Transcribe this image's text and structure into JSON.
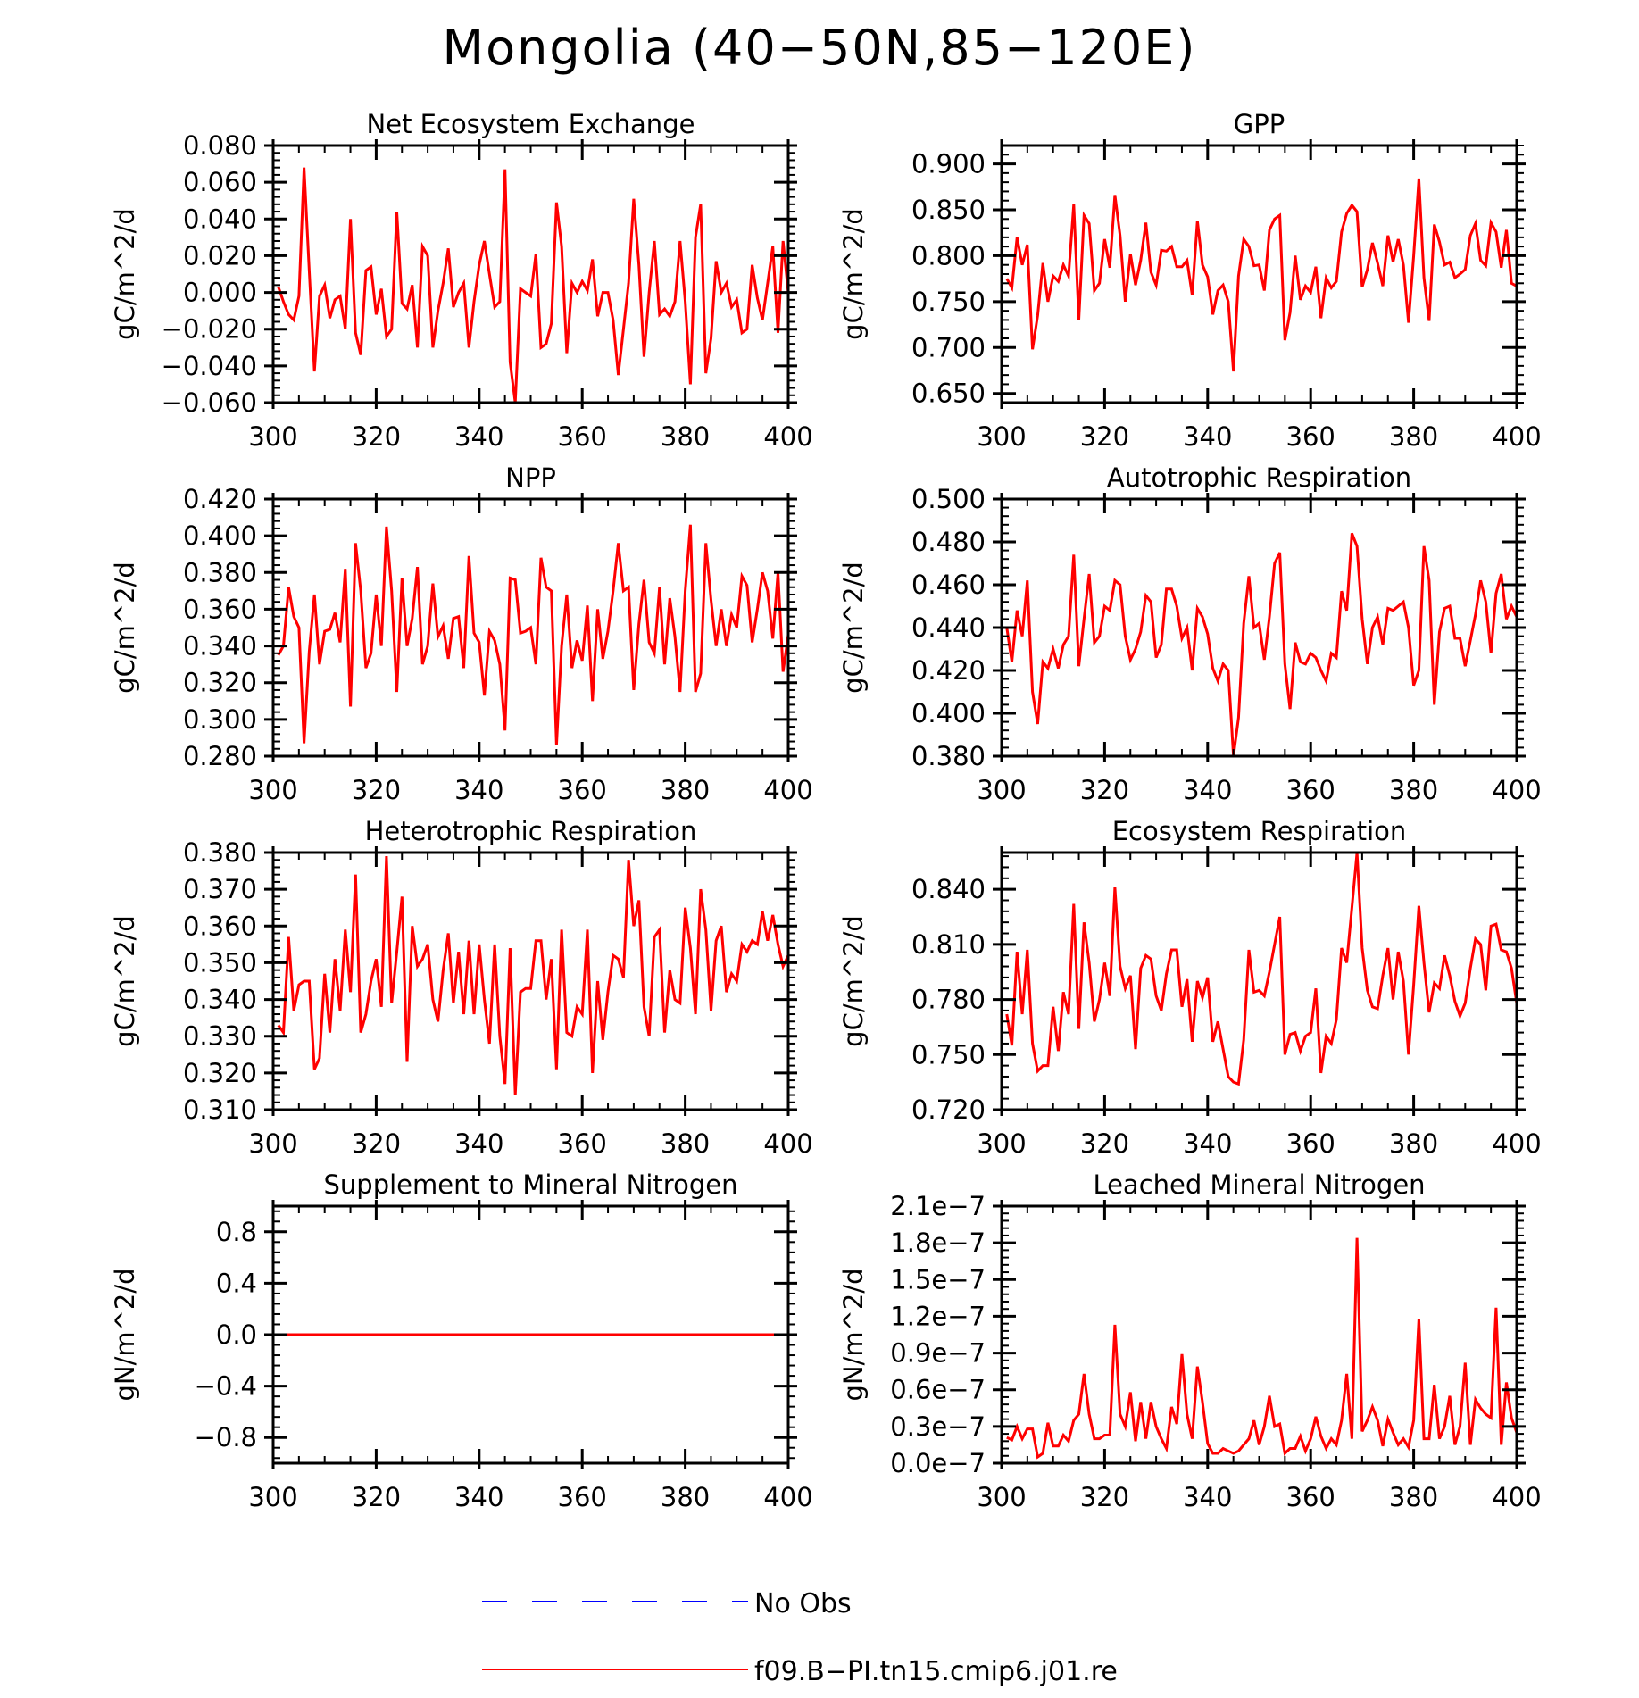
{
  "figure": {
    "title": "Mongolia (40−50N,85−120E)"
  },
  "colors": {
    "model": "#ff0000",
    "obs": "#0000ff",
    "axis": "#000000"
  },
  "legend": {
    "placement": "bottom-center",
    "entries": [
      {
        "label": "No Obs",
        "style": "dashed",
        "color": "#0000ff"
      },
      {
        "label": "f09.B−PI.tn15.cmip6.j01.re",
        "style": "solid",
        "color": "#ff0000"
      }
    ]
  },
  "chart_data": [
    {
      "type": "line",
      "title": "Net Ecosystem Exchange",
      "xlabel": "",
      "ylabel": "gC/m^2/d",
      "xlim": [
        300,
        400
      ],
      "ylim": [
        -0.06,
        0.08
      ],
      "xticks": [
        300,
        320,
        340,
        360,
        380,
        400
      ],
      "yticks": [
        -0.06,
        -0.04,
        -0.02,
        0.0,
        0.02,
        0.04,
        0.06,
        0.08
      ],
      "ytick_labels": [
        "−0.060",
        "−0.040",
        "−0.020",
        "0.000",
        "0.020",
        "0.040",
        "0.060",
        "0.080"
      ],
      "series": [
        {
          "name": "f09.B−PI.tn15.cmip6.j01.re",
          "x0": 301,
          "dx": 1,
          "values": [
            0.003,
            -0.005,
            -0.012,
            -0.015,
            -0.002,
            0.068,
            0.012,
            -0.043,
            -0.002,
            0.004,
            -0.014,
            -0.004,
            -0.002,
            -0.02,
            0.04,
            -0.022,
            -0.034,
            0.012,
            0.014,
            -0.012,
            0.002,
            -0.024,
            -0.02,
            0.044,
            -0.006,
            -0.009,
            0.004,
            -0.03,
            0.025,
            0.02,
            -0.03,
            -0.01,
            0.005,
            0.024,
            -0.008,
            0.0,
            0.005,
            -0.03,
            -0.005,
            0.015,
            0.028,
            0.01,
            -0.008,
            -0.005,
            0.067,
            -0.038,
            -0.06,
            0.002,
            0.0,
            -0.002,
            0.021,
            -0.03,
            -0.028,
            -0.017,
            0.049,
            0.025,
            -0.033,
            0.005,
            0.0,
            0.006,
            0.001,
            0.018,
            -0.013,
            0.0,
            0.0,
            -0.015,
            -0.045,
            -0.02,
            0.005,
            0.051,
            0.015,
            -0.035,
            0.0,
            0.028,
            -0.012,
            -0.009,
            -0.013,
            -0.005,
            0.028,
            -0.005,
            -0.05,
            0.03,
            0.048,
            -0.044,
            -0.025,
            0.017,
            0.0,
            0.005,
            -0.008,
            -0.004,
            -0.022,
            -0.02,
            0.015,
            -0.003,
            -0.015,
            0.005,
            0.025,
            -0.022,
            0.028,
            0.0
          ]
        }
      ]
    },
    {
      "type": "line",
      "title": "GPP",
      "xlabel": "",
      "ylabel": "gC/m^2/d",
      "xlim": [
        300,
        400
      ],
      "ylim": [
        0.64,
        0.92
      ],
      "xticks": [
        300,
        320,
        340,
        360,
        380,
        400
      ],
      "yticks": [
        0.65,
        0.7,
        0.75,
        0.8,
        0.85,
        0.9
      ],
      "ytick_labels": [
        "0.650",
        "0.700",
        "0.750",
        "0.800",
        "0.850",
        "0.900"
      ],
      "series": [
        {
          "name": "f09.B−PI.tn15.cmip6.j01.re",
          "x0": 301,
          "dx": 1,
          "values": [
            0.775,
            0.765,
            0.82,
            0.79,
            0.812,
            0.698,
            0.735,
            0.792,
            0.75,
            0.778,
            0.772,
            0.79,
            0.778,
            0.856,
            0.73,
            0.844,
            0.835,
            0.762,
            0.77,
            0.818,
            0.787,
            0.866,
            0.822,
            0.75,
            0.802,
            0.768,
            0.795,
            0.836,
            0.782,
            0.768,
            0.806,
            0.805,
            0.81,
            0.788,
            0.788,
            0.795,
            0.757,
            0.838,
            0.79,
            0.777,
            0.736,
            0.762,
            0.768,
            0.75,
            0.674,
            0.778,
            0.818,
            0.81,
            0.789,
            0.79,
            0.762,
            0.828,
            0.84,
            0.844,
            0.708,
            0.738,
            0.8,
            0.752,
            0.767,
            0.76,
            0.788,
            0.732,
            0.776,
            0.765,
            0.772,
            0.826,
            0.846,
            0.855,
            0.848,
            0.766,
            0.785,
            0.814,
            0.792,
            0.767,
            0.822,
            0.793,
            0.818,
            0.79,
            0.727,
            0.8,
            0.884,
            0.776,
            0.729,
            0.834,
            0.815,
            0.79,
            0.793,
            0.776,
            0.78,
            0.785,
            0.822,
            0.835,
            0.795,
            0.789,
            0.836,
            0.826,
            0.787,
            0.828,
            0.77,
            0.767
          ]
        }
      ]
    },
    {
      "type": "line",
      "title": "NPP",
      "xlabel": "",
      "ylabel": "gC/m^2/d",
      "xlim": [
        300,
        400
      ],
      "ylim": [
        0.28,
        0.42
      ],
      "xticks": [
        300,
        320,
        340,
        360,
        380,
        400
      ],
      "yticks": [
        0.28,
        0.3,
        0.32,
        0.34,
        0.36,
        0.38,
        0.4,
        0.42
      ],
      "ytick_labels": [
        "0.280",
        "0.300",
        "0.320",
        "0.340",
        "0.360",
        "0.380",
        "0.400",
        "0.420"
      ],
      "series": [
        {
          "name": "f09.B−PI.tn15.cmip6.j01.re",
          "x0": 301,
          "dx": 1,
          "values": [
            0.335,
            0.34,
            0.372,
            0.356,
            0.35,
            0.287,
            0.337,
            0.368,
            0.33,
            0.348,
            0.349,
            0.358,
            0.342,
            0.382,
            0.307,
            0.396,
            0.37,
            0.328,
            0.336,
            0.368,
            0.34,
            0.405,
            0.37,
            0.315,
            0.377,
            0.34,
            0.355,
            0.383,
            0.33,
            0.34,
            0.374,
            0.345,
            0.351,
            0.333,
            0.355,
            0.356,
            0.328,
            0.389,
            0.347,
            0.342,
            0.313,
            0.348,
            0.343,
            0.33,
            0.294,
            0.377,
            0.376,
            0.347,
            0.348,
            0.35,
            0.33,
            0.388,
            0.372,
            0.37,
            0.286,
            0.34,
            0.368,
            0.328,
            0.343,
            0.332,
            0.362,
            0.31,
            0.36,
            0.333,
            0.348,
            0.37,
            0.396,
            0.37,
            0.372,
            0.316,
            0.352,
            0.376,
            0.342,
            0.336,
            0.372,
            0.33,
            0.366,
            0.345,
            0.315,
            0.37,
            0.406,
            0.315,
            0.325,
            0.396,
            0.365,
            0.34,
            0.36,
            0.34,
            0.357,
            0.35,
            0.378,
            0.373,
            0.342,
            0.36,
            0.38,
            0.37,
            0.344,
            0.38,
            0.326,
            0.346
          ]
        }
      ]
    },
    {
      "type": "line",
      "title": "Autotrophic Respiration",
      "xlabel": "",
      "ylabel": "gC/m^2/d",
      "xlim": [
        300,
        400
      ],
      "ylim": [
        0.38,
        0.5
      ],
      "xticks": [
        300,
        320,
        340,
        360,
        380,
        400
      ],
      "yticks": [
        0.38,
        0.4,
        0.42,
        0.44,
        0.46,
        0.48,
        0.5
      ],
      "ytick_labels": [
        "0.380",
        "0.400",
        "0.420",
        "0.440",
        "0.460",
        "0.480",
        "0.500"
      ],
      "series": [
        {
          "name": "f09.B−PI.tn15.cmip6.j01.re",
          "x0": 301,
          "dx": 1,
          "values": [
            0.44,
            0.424,
            0.448,
            0.436,
            0.462,
            0.41,
            0.395,
            0.424,
            0.421,
            0.43,
            0.421,
            0.432,
            0.436,
            0.474,
            0.422,
            0.444,
            0.465,
            0.433,
            0.436,
            0.45,
            0.448,
            0.462,
            0.46,
            0.436,
            0.425,
            0.43,
            0.438,
            0.455,
            0.452,
            0.426,
            0.432,
            0.458,
            0.458,
            0.45,
            0.435,
            0.44,
            0.42,
            0.449,
            0.445,
            0.437,
            0.421,
            0.415,
            0.423,
            0.42,
            0.38,
            0.398,
            0.442,
            0.464,
            0.44,
            0.442,
            0.425,
            0.445,
            0.47,
            0.475,
            0.423,
            0.402,
            0.433,
            0.424,
            0.423,
            0.428,
            0.426,
            0.42,
            0.415,
            0.428,
            0.426,
            0.457,
            0.448,
            0.484,
            0.478,
            0.444,
            0.423,
            0.44,
            0.445,
            0.432,
            0.449,
            0.448,
            0.45,
            0.452,
            0.44,
            0.413,
            0.42,
            0.478,
            0.462,
            0.404,
            0.438,
            0.449,
            0.45,
            0.435,
            0.435,
            0.422,
            0.434,
            0.446,
            0.462,
            0.452,
            0.428,
            0.456,
            0.465,
            0.444,
            0.45,
            0.445
          ]
        }
      ]
    },
    {
      "type": "line",
      "title": "Heterotrophic Respiration",
      "xlabel": "",
      "ylabel": "gC/m^2/d",
      "xlim": [
        300,
        400
      ],
      "ylim": [
        0.31,
        0.38
      ],
      "xticks": [
        300,
        320,
        340,
        360,
        380,
        400
      ],
      "yticks": [
        0.31,
        0.32,
        0.33,
        0.34,
        0.35,
        0.36,
        0.37,
        0.38
      ],
      "ytick_labels": [
        "0.310",
        "0.320",
        "0.330",
        "0.340",
        "0.350",
        "0.360",
        "0.370",
        "0.380"
      ],
      "series": [
        {
          "name": "f09.B−PI.tn15.cmip6.j01.re",
          "x0": 301,
          "dx": 1,
          "values": [
            0.333,
            0.331,
            0.357,
            0.337,
            0.344,
            0.345,
            0.345,
            0.321,
            0.324,
            0.347,
            0.331,
            0.351,
            0.337,
            0.359,
            0.342,
            0.374,
            0.331,
            0.336,
            0.345,
            0.351,
            0.338,
            0.379,
            0.339,
            0.353,
            0.368,
            0.323,
            0.36,
            0.349,
            0.351,
            0.355,
            0.34,
            0.334,
            0.348,
            0.358,
            0.339,
            0.353,
            0.336,
            0.356,
            0.336,
            0.355,
            0.34,
            0.328,
            0.355,
            0.33,
            0.317,
            0.354,
            0.314,
            0.342,
            0.343,
            0.343,
            0.356,
            0.356,
            0.34,
            0.351,
            0.321,
            0.359,
            0.331,
            0.33,
            0.338,
            0.336,
            0.359,
            0.32,
            0.345,
            0.329,
            0.342,
            0.352,
            0.351,
            0.346,
            0.378,
            0.36,
            0.367,
            0.338,
            0.33,
            0.357,
            0.359,
            0.331,
            0.348,
            0.34,
            0.339,
            0.365,
            0.354,
            0.336,
            0.37,
            0.359,
            0.337,
            0.356,
            0.36,
            0.342,
            0.347,
            0.345,
            0.355,
            0.353,
            0.356,
            0.355,
            0.364,
            0.356,
            0.363,
            0.355,
            0.349,
            0.352
          ]
        }
      ]
    },
    {
      "type": "line",
      "title": "Ecosystem Respiration",
      "xlabel": "",
      "ylabel": "gC/m^2/d",
      "xlim": [
        300,
        400
      ],
      "ylim": [
        0.72,
        0.86
      ],
      "xticks": [
        300,
        320,
        340,
        360,
        380,
        400
      ],
      "yticks": [
        0.72,
        0.75,
        0.78,
        0.81,
        0.84
      ],
      "ytick_labels": [
        "0.720",
        "0.750",
        "0.780",
        "0.810",
        "0.840"
      ],
      "series": [
        {
          "name": "f09.B−PI.tn15.cmip6.j01.re",
          "x0": 301,
          "dx": 1,
          "values": [
            0.772,
            0.755,
            0.806,
            0.772,
            0.807,
            0.756,
            0.741,
            0.744,
            0.744,
            0.776,
            0.752,
            0.784,
            0.772,
            0.832,
            0.764,
            0.822,
            0.8,
            0.768,
            0.78,
            0.8,
            0.782,
            0.841,
            0.798,
            0.786,
            0.793,
            0.753,
            0.797,
            0.804,
            0.802,
            0.782,
            0.774,
            0.794,
            0.807,
            0.807,
            0.776,
            0.791,
            0.757,
            0.79,
            0.781,
            0.792,
            0.757,
            0.768,
            0.753,
            0.738,
            0.735,
            0.734,
            0.758,
            0.807,
            0.784,
            0.785,
            0.782,
            0.795,
            0.81,
            0.825,
            0.75,
            0.761,
            0.762,
            0.752,
            0.76,
            0.762,
            0.786,
            0.74,
            0.76,
            0.756,
            0.769,
            0.808,
            0.8,
            0.83,
            0.86,
            0.808,
            0.785,
            0.776,
            0.775,
            0.793,
            0.808,
            0.78,
            0.806,
            0.79,
            0.75,
            0.788,
            0.831,
            0.8,
            0.773,
            0.789,
            0.786,
            0.804,
            0.793,
            0.779,
            0.771,
            0.778,
            0.797,
            0.813,
            0.81,
            0.785,
            0.82,
            0.821,
            0.807,
            0.806,
            0.797,
            0.778
          ]
        }
      ]
    },
    {
      "type": "line",
      "title": "Supplement to Mineral Nitrogen",
      "xlabel": "",
      "ylabel": "gN/m^2/d",
      "xlim": [
        300,
        400
      ],
      "ylim": [
        -1.0,
        1.0
      ],
      "xticks": [
        300,
        320,
        340,
        360,
        380,
        400
      ],
      "yticks": [
        -0.8,
        -0.4,
        0.0,
        0.4,
        0.8
      ],
      "ytick_labels": [
        "−0.8",
        "−0.4",
        "0.0",
        "0.4",
        "0.8"
      ],
      "series": [
        {
          "name": "f09.B−PI.tn15.cmip6.j01.re",
          "x0": 301,
          "dx": 1,
          "constant": 0.0,
          "count": 100
        }
      ]
    },
    {
      "type": "line",
      "title": "Leached Mineral Nitrogen",
      "xlabel": "",
      "ylabel": "gN/m^2/d",
      "xlim": [
        300,
        400
      ],
      "ylim": [
        0.0,
        2.1e-07
      ],
      "xticks": [
        300,
        320,
        340,
        360,
        380,
        400
      ],
      "yticks": [
        0.0,
        3e-08,
        6e-08,
        9e-08,
        1.2e-07,
        1.5e-07,
        1.8e-07,
        2.1e-07
      ],
      "ytick_labels": [
        "0.0e−7",
        "0.3e−7",
        "0.6e−7",
        "0.9e−7",
        "1.2e−7",
        "1.5e−7",
        "1.8e−7",
        "2.1e−7"
      ],
      "series": [
        {
          "name": "f09.B−PI.tn15.cmip6.j01.re",
          "x0": 301,
          "dx": 1,
          "values": [
            2.1e-08,
            1.9e-08,
            3e-08,
            2e-08,
            2.8e-08,
            2.8e-08,
            5e-09,
            8e-09,
            3.3e-08,
            1.4e-08,
            1.4e-08,
            2.3e-08,
            1.8e-08,
            3.5e-08,
            4e-08,
            7.3e-08,
            4e-08,
            2e-08,
            2e-08,
            2.3e-08,
            2.3e-08,
            1.13e-07,
            4e-08,
            3e-08,
            5.8e-08,
            1.8e-08,
            5e-08,
            2e-08,
            5e-08,
            3e-08,
            2e-08,
            1.2e-08,
            4.6e-08,
            3.2e-08,
            8.9e-08,
            4e-08,
            2e-08,
            7.9e-08,
            5e-08,
            1.6e-08,
            8e-09,
            8e-09,
            1.2e-08,
            1e-08,
            8e-09,
            1e-08,
            1.5e-08,
            2e-08,
            3.5e-08,
            1.5e-08,
            3e-08,
            5.5e-08,
            3e-08,
            3.2e-08,
            8e-09,
            1.2e-08,
            1.2e-08,
            2.2e-08,
            1e-08,
            2e-08,
            3.8e-08,
            2.2e-08,
            1.2e-08,
            2e-08,
            1.5e-08,
            3.5e-08,
            7.3e-08,
            2e-08,
            1.84e-07,
            2.6e-08,
            3.5e-08,
            4.6e-08,
            3.5e-08,
            1.4e-08,
            3.6e-08,
            2.5e-08,
            1.5e-08,
            2e-08,
            1.3e-08,
            3.5e-08,
            1.18e-07,
            2e-08,
            2e-08,
            6.4e-08,
            2e-08,
            3e-08,
            5.5e-08,
            1.5e-08,
            3e-08,
            8.2e-08,
            1.5e-08,
            5.2e-08,
            4.5e-08,
            4e-08,
            3.7e-08,
            1.27e-07,
            1.5e-08,
            6.6e-08,
            3.7e-08,
            2.5e-08
          ]
        }
      ]
    }
  ]
}
